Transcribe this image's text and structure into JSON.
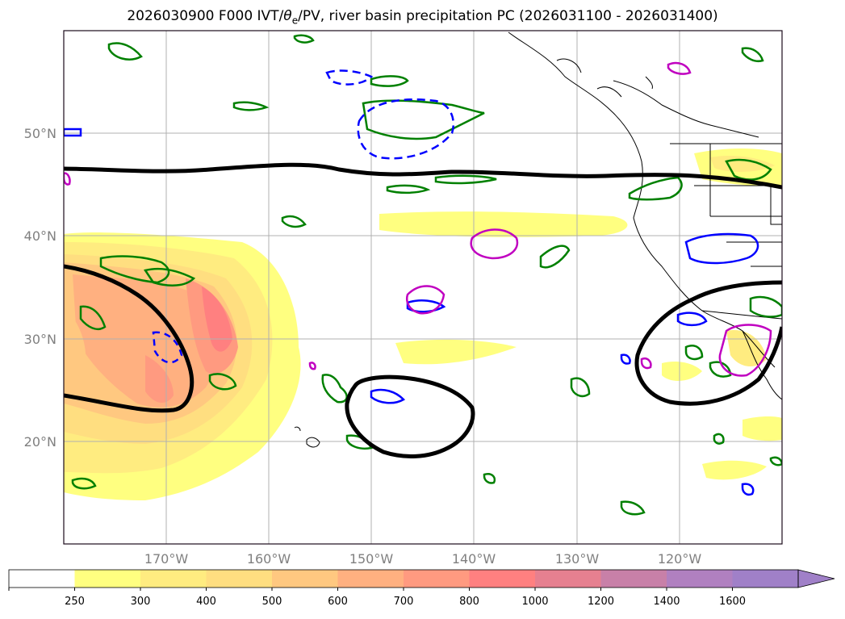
{
  "title_main": "2026030900 F000 IVT/",
  "title_theta": "θ",
  "title_sub": "e",
  "title_rest": "/PV, river basin precipitation PC (2026031100 - 2026031400)",
  "lat_labels": [
    "50°N",
    "40°N",
    "30°N",
    "20°N"
  ],
  "lon_labels": [
    "170°W",
    "160°W",
    "150°W",
    "140°W",
    "130°W",
    "120°W"
  ],
  "colorbar": {
    "ticks": [
      "250",
      "300",
      "400",
      "500",
      "600",
      "700",
      "800",
      "1000",
      "1200",
      "1400",
      "1600"
    ],
    "colors": [
      "#ffffff",
      "#ffff80",
      "#ffec80",
      "#ffde80",
      "#ffc880",
      "#ffb080",
      "#ff9a80",
      "#ff8080",
      "#e68090",
      "#c880a8",
      "#b080c0",
      "#a080c8"
    ]
  },
  "legend_colors": {
    "theta_e_contour": "#000000",
    "pv_contour": "#008000",
    "blue_contour": "#0000ff",
    "magenta_contour": "#c000c0"
  }
}
